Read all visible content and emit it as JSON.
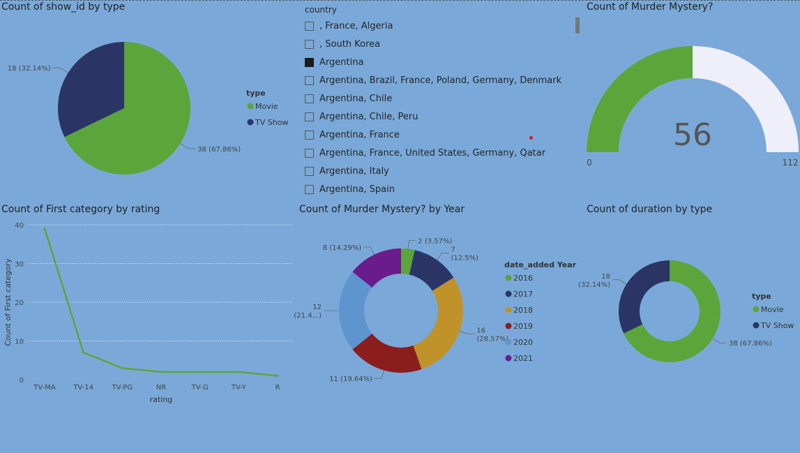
{
  "pie_type": {
    "title": "Count of show_id by type",
    "legend_title": "type",
    "colors": {
      "movie": "#5ca53b",
      "tvshow": "#2a3566"
    },
    "chart_data": {
      "type": "pie",
      "categories": [
        "Movie",
        "TV Show"
      ],
      "values": [
        38,
        18
      ],
      "labels": [
        "38 (67.86%)",
        "18 (32.14%)"
      ],
      "title": "Count of show_id by type"
    }
  },
  "slicer": {
    "header": "country",
    "items": [
      {
        "label": ", France, Algeria",
        "checked": false
      },
      {
        "label": ", South Korea",
        "checked": false
      },
      {
        "label": "Argentina",
        "checked": true
      },
      {
        "label": "Argentina, Brazil, France, Poland, Germany, Denmark",
        "checked": false
      },
      {
        "label": "Argentina, Chile",
        "checked": false
      },
      {
        "label": "Argentina, Chile, Peru",
        "checked": false
      },
      {
        "label": "Argentina, France",
        "checked": false
      },
      {
        "label": "Argentina, France, United States, Germany, Qatar",
        "checked": false
      },
      {
        "label": "Argentina, Italy",
        "checked": false
      },
      {
        "label": "Argentina, Spain",
        "checked": false
      }
    ]
  },
  "gauge": {
    "title": "Count of Murder Mystery?",
    "value": "56",
    "min_label": "0",
    "max_label": "112",
    "colors": {
      "fill": "#5ca53b",
      "track": "#eeeff8"
    },
    "chart_data": {
      "type": "gauge",
      "value": 56,
      "min": 0,
      "max": 112
    }
  },
  "line_rating": {
    "title": "Count of First category by rating",
    "color": "#5ca53b",
    "chart_data": {
      "type": "line",
      "categories": [
        "TV-MA",
        "TV-14",
        "TV-PG",
        "NR",
        "TV-G",
        "TV-Y",
        "R"
      ],
      "values": [
        39,
        7,
        3,
        2,
        2,
        2,
        1
      ],
      "xlabel": "rating",
      "ylabel": "Count of First category",
      "ylim": [
        0,
        40
      ],
      "yticks": [
        "0",
        "10",
        "20",
        "30",
        "40"
      ],
      "grid": true
    }
  },
  "donut_year": {
    "title": "Count of Murder Mystery? by Year",
    "legend_title": "date_added Year",
    "chart_data": {
      "type": "pie",
      "categories": [
        "2016",
        "2017",
        "2018",
        "2019",
        "2020",
        "2021"
      ],
      "values": [
        2,
        7,
        16,
        11,
        12,
        8
      ],
      "colors": [
        "#5ca53b",
        "#2a3566",
        "#c0922a",
        "#8b1d1d",
        "#5f95cf",
        "#6a1b8c"
      ],
      "labels": [
        "2 (3.57%)",
        "7|(12.5%)",
        "16|(28.57%)",
        "11 (19.64%)",
        "12|(21.4...)",
        "8 (14.29%)"
      ]
    }
  },
  "donut_type": {
    "title": "Count of duration by type",
    "legend_title": "type",
    "chart_data": {
      "type": "pie",
      "categories": [
        "Movie",
        "TV Show"
      ],
      "values": [
        38,
        18
      ],
      "colors": [
        "#5ca53b",
        "#2a3566"
      ],
      "labels": [
        "38 (67.86%)",
        "18|(32.14%)"
      ]
    }
  }
}
